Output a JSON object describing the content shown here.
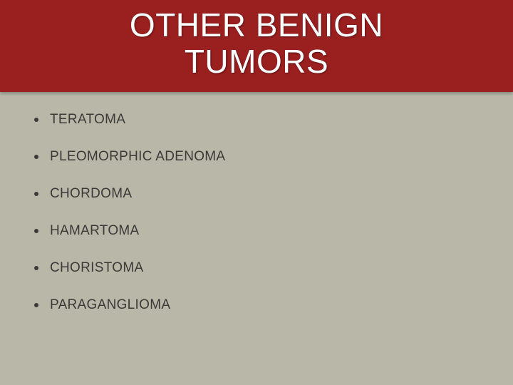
{
  "slide": {
    "title_line1": "OTHER BENIGN",
    "title_line2": "TUMORS",
    "title_color": "#ffffff",
    "title_bg_color": "#9a1f1f",
    "title_fontsize": 46,
    "background_color": "#b8b7a8",
    "bullet_color": "#3a3a38",
    "text_color": "#3a3a38",
    "item_fontsize": 19,
    "items": [
      "TERATOMA",
      "PLEOMORPHIC ADENOMA",
      "CHORDOMA",
      "HAMARTOMA",
      "CHORISTOMA",
      "PARAGANGLIOMA"
    ]
  }
}
